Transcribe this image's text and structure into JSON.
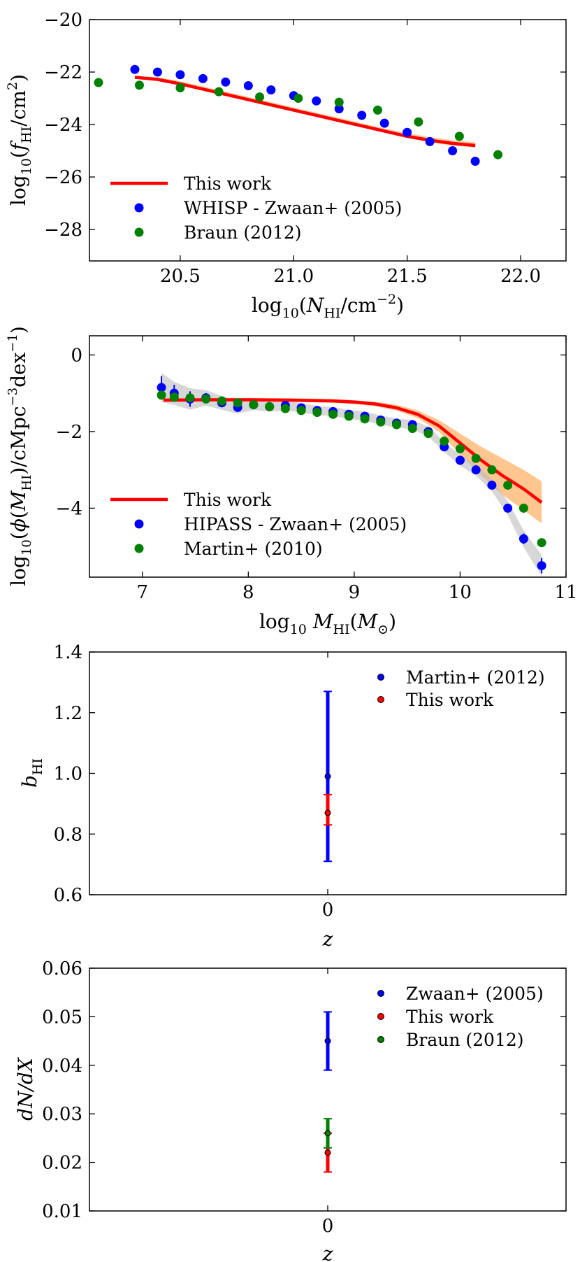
{
  "chart_data": [
    {
      "type": "scatter",
      "panel": "cddf",
      "xlabel": "log10(N_HI/cm^-2)",
      "ylabel": "log10(f_HI/cm^2)",
      "xlim": [
        20.1,
        22.2
      ],
      "ylim": [
        -29.2,
        -20.0
      ],
      "xticks": [
        "20.5",
        "21.0",
        "21.5",
        "22.0"
      ],
      "xtick_values": [
        20.5,
        21.0,
        21.5,
        22.0
      ],
      "yticks": [
        "−28",
        "−26",
        "−24",
        "−22",
        "−20"
      ],
      "ytick_values": [
        -28,
        -26,
        -24,
        -22,
        -20
      ],
      "legend_position": "lower-left",
      "series": [
        {
          "name": "This work",
          "kind": "line",
          "color": "#ff0000",
          "band_color": "#ffb36b",
          "x": [
            20.3,
            20.4,
            20.5,
            20.6,
            20.7,
            20.8,
            20.9,
            21.0,
            21.1,
            21.2,
            21.3,
            21.4,
            21.5,
            21.6,
            21.7,
            21.8
          ],
          "y": [
            -22.2,
            -22.28,
            -22.45,
            -22.65,
            -22.85,
            -23.05,
            -23.25,
            -23.45,
            -23.65,
            -23.85,
            -24.05,
            -24.25,
            -24.45,
            -24.6,
            -24.72,
            -24.8
          ],
          "band_lo": [
            -22.25,
            -22.33,
            -22.5,
            -22.7,
            -22.9,
            -23.1,
            -23.3,
            -23.5,
            -23.7,
            -23.9,
            -24.1,
            -24.3,
            -24.5,
            -24.68,
            -24.8,
            -24.88
          ],
          "band_hi": [
            -22.15,
            -22.2,
            -22.35,
            -22.55,
            -22.75,
            -22.95,
            -23.15,
            -23.35,
            -23.55,
            -23.75,
            -23.95,
            -24.15,
            -24.33,
            -24.48,
            -24.6,
            -24.68
          ]
        },
        {
          "name": "WHISP - Zwaan+ (2005)",
          "kind": "points",
          "color": "#0000ff",
          "x": [
            20.3,
            20.4,
            20.5,
            20.6,
            20.7,
            20.8,
            20.9,
            21.0,
            21.1,
            21.2,
            21.3,
            21.4,
            21.5,
            21.6,
            21.7,
            21.8
          ],
          "y": [
            -21.9,
            -22.0,
            -22.1,
            -22.25,
            -22.38,
            -22.52,
            -22.68,
            -22.9,
            -23.1,
            -23.4,
            -23.65,
            -23.95,
            -24.3,
            -24.65,
            -25.0,
            -25.4
          ]
        },
        {
          "name": "Braun (2012)",
          "kind": "points",
          "color": "#008000",
          "x": [
            20.14,
            20.32,
            20.5,
            20.67,
            20.85,
            21.02,
            21.2,
            21.37,
            21.55,
            21.73,
            21.9
          ],
          "y": [
            -22.4,
            -22.5,
            -22.6,
            -22.75,
            -22.95,
            -23.0,
            -23.15,
            -23.45,
            -23.9,
            -24.45,
            -25.15
          ]
        }
      ]
    },
    {
      "type": "scatter",
      "panel": "himf",
      "xlabel": "log10 M_HI(M_sun)",
      "ylabel": "log10(phi(M_HI)/cMpc^-3 dex^-1)",
      "xlim": [
        6.5,
        11.0
      ],
      "ylim": [
        -5.8,
        0.5
      ],
      "xticks": [
        "7",
        "8",
        "9",
        "10",
        "11"
      ],
      "xtick_values": [
        7,
        8,
        9,
        10,
        11
      ],
      "yticks": [
        "−4",
        "−2",
        "0"
      ],
      "ytick_values": [
        -4,
        -2,
        0
      ],
      "legend_position": "lower-left",
      "series": [
        {
          "name": "This work",
          "kind": "line",
          "color": "#ff0000",
          "band_color": "#ffb36b",
          "x": [
            7.2,
            7.6,
            8.0,
            8.4,
            8.8,
            9.0,
            9.2,
            9.4,
            9.6,
            9.8,
            10.0,
            10.2,
            10.4,
            10.6,
            10.77
          ],
          "y": [
            -1.18,
            -1.17,
            -1.17,
            -1.18,
            -1.2,
            -1.23,
            -1.28,
            -1.38,
            -1.55,
            -1.85,
            -2.3,
            -2.75,
            -3.15,
            -3.5,
            -3.85
          ],
          "band_lo": [
            -1.22,
            -1.21,
            -1.21,
            -1.22,
            -1.25,
            -1.28,
            -1.34,
            -1.45,
            -1.65,
            -2.0,
            -2.6,
            -3.15,
            -3.65,
            -4.05,
            -4.4
          ],
          "band_hi": [
            -1.13,
            -1.12,
            -1.12,
            -1.13,
            -1.15,
            -1.18,
            -1.22,
            -1.3,
            -1.45,
            -1.7,
            -2.05,
            -2.4,
            -2.7,
            -3.0,
            -3.3
          ]
        },
        {
          "name": "HIPASS - Zwaan+ (2005)",
          "kind": "points",
          "color": "#0000ff",
          "x": [
            7.18,
            7.3,
            7.45,
            7.6,
            7.75,
            7.9,
            8.05,
            8.2,
            8.35,
            8.5,
            8.65,
            8.8,
            8.95,
            9.1,
            9.25,
            9.4,
            9.55,
            9.7,
            9.85,
            10.0,
            10.15,
            10.3,
            10.45,
            10.6,
            10.77
          ],
          "y": [
            -0.85,
            -1.0,
            -1.15,
            -1.12,
            -1.25,
            -1.37,
            -1.3,
            -1.35,
            -1.32,
            -1.38,
            -1.45,
            -1.48,
            -1.55,
            -1.6,
            -1.7,
            -1.78,
            -1.82,
            -2.0,
            -2.4,
            -2.75,
            -3.0,
            -3.4,
            -4.0,
            -4.8,
            -5.5
          ],
          "err": [
            0.3,
            0.22,
            0.2,
            0.12,
            0.1,
            0.08,
            0.06,
            0.05,
            0.05,
            0.04,
            0.04,
            0.04,
            0.04,
            0.04,
            0.04,
            0.04,
            0.04,
            0.05,
            0.05,
            0.06,
            0.07,
            0.08,
            0.1,
            0.14,
            0.2
          ]
        },
        {
          "name": "Martin+ (2010)",
          "kind": "points",
          "color": "#008000",
          "x": [
            7.18,
            7.3,
            7.45,
            7.6,
            7.75,
            7.9,
            8.05,
            8.2,
            8.35,
            8.5,
            8.65,
            8.8,
            8.95,
            9.1,
            9.25,
            9.4,
            9.55,
            9.7,
            9.85,
            10.0,
            10.15,
            10.3,
            10.45,
            10.6,
            10.77
          ],
          "y": [
            -1.05,
            -1.1,
            -1.12,
            -1.15,
            -1.2,
            -1.25,
            -1.3,
            -1.35,
            -1.4,
            -1.45,
            -1.5,
            -1.55,
            -1.6,
            -1.67,
            -1.75,
            -1.82,
            -1.92,
            -2.05,
            -2.25,
            -2.45,
            -2.7,
            -3.0,
            -3.4,
            -4.0,
            -4.9
          ]
        }
      ]
    },
    {
      "type": "scatter",
      "panel": "bias",
      "xlabel": "z",
      "ylabel": "b_HI",
      "xlim": [
        -1,
        1
      ],
      "ylim": [
        0.6,
        1.4
      ],
      "xticks": [
        "0"
      ],
      "xtick_values": [
        0
      ],
      "yticks": [
        "0.6",
        "0.8",
        "1.0",
        "1.2",
        "1.4"
      ],
      "ytick_values": [
        0.6,
        0.8,
        1.0,
        1.2,
        1.4
      ],
      "legend_position": "upper-right",
      "series": [
        {
          "name": "Martin+ (2012)",
          "kind": "errorbar",
          "color": "#0000ff",
          "x": [
            0
          ],
          "y": [
            0.99
          ],
          "err_lo": [
            0.28
          ],
          "err_hi": [
            0.28
          ]
        },
        {
          "name": "This work",
          "kind": "errorbar",
          "color": "#ff0000",
          "x": [
            0
          ],
          "y": [
            0.87
          ],
          "err_lo": [
            0.04
          ],
          "err_hi": [
            0.06
          ]
        }
      ]
    },
    {
      "type": "scatter",
      "panel": "dndx",
      "xlabel": "z",
      "ylabel": "dN/dX",
      "xlim": [
        -1,
        1
      ],
      "ylim": [
        0.01,
        0.06
      ],
      "xticks": [
        "0"
      ],
      "xtick_values": [
        0
      ],
      "yticks": [
        "0.01",
        "0.02",
        "0.03",
        "0.04",
        "0.05",
        "0.06"
      ],
      "ytick_values": [
        0.01,
        0.02,
        0.03,
        0.04,
        0.05,
        0.06
      ],
      "legend_position": "upper-right",
      "series": [
        {
          "name": "Zwaan+ (2005)",
          "kind": "errorbar",
          "color": "#0000ff",
          "x": [
            0
          ],
          "y": [
            0.045
          ],
          "err_lo": [
            0.006
          ],
          "err_hi": [
            0.006
          ]
        },
        {
          "name": "This work",
          "kind": "errorbar",
          "color": "#ff0000",
          "x": [
            0
          ],
          "y": [
            0.022
          ],
          "err_lo": [
            0.004
          ],
          "err_hi": [
            0.004
          ]
        },
        {
          "name": "Braun (2012)",
          "kind": "errorbar",
          "color": "#008000",
          "x": [
            0
          ],
          "y": [
            0.026
          ],
          "err_lo": [
            0.003
          ],
          "err_hi": [
            0.003
          ]
        }
      ]
    }
  ]
}
